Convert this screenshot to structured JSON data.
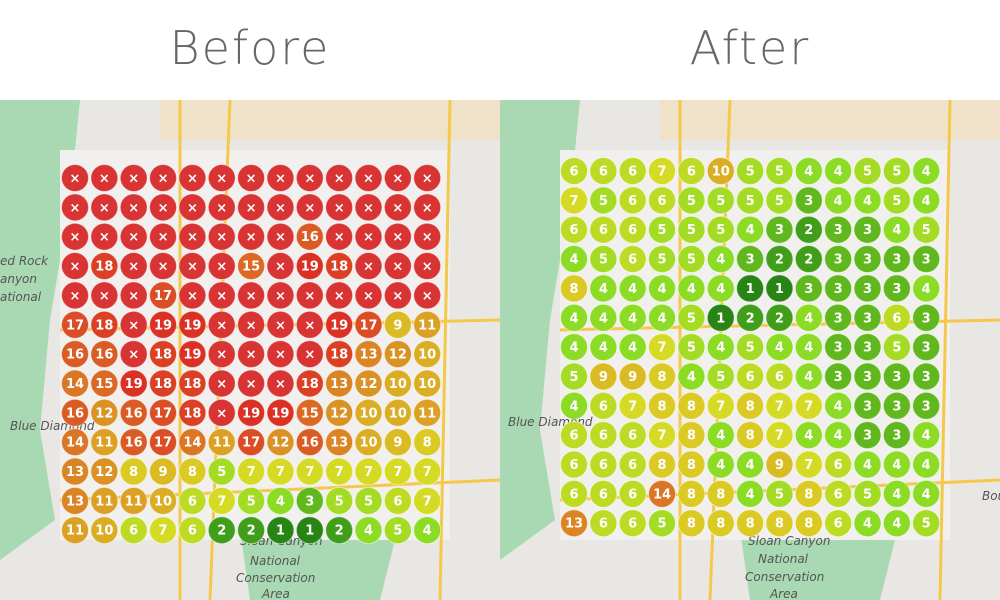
{
  "panels": [
    {
      "title": "Before",
      "map_labels": [
        "ed Rock",
        "anyon",
        "ational",
        "Blue Diamond",
        "Sloan Canyon",
        "National",
        "Conservation",
        "Area"
      ],
      "grid": [
        [
          "×",
          "×",
          "×",
          "×",
          "×",
          "×",
          "×",
          "×",
          "×",
          "×",
          "×",
          "×",
          "×"
        ],
        [
          "×",
          "×",
          "×",
          "×",
          "×",
          "×",
          "×",
          "×",
          "×",
          "×",
          "×",
          "×",
          "×"
        ],
        [
          "×",
          "×",
          "×",
          "×",
          "×",
          "×",
          "×",
          "×",
          16,
          "×",
          "×",
          "×",
          "×"
        ],
        [
          "×",
          18,
          "×",
          "×",
          "×",
          "×",
          15,
          "×",
          19,
          18,
          "×",
          "×",
          "×"
        ],
        [
          "×",
          "×",
          "×",
          17,
          "×",
          "×",
          "×",
          "×",
          "×",
          "×",
          "×",
          "×",
          "×"
        ],
        [
          17,
          18,
          "×",
          19,
          19,
          "×",
          "×",
          "×",
          "×",
          19,
          17,
          9,
          11
        ],
        [
          16,
          16,
          "×",
          18,
          19,
          "×",
          "×",
          "×",
          "×",
          18,
          13,
          12,
          10
        ],
        [
          14,
          15,
          19,
          18,
          18,
          "×",
          "×",
          "×",
          18,
          13,
          12,
          10,
          10
        ],
        [
          16,
          12,
          16,
          17,
          18,
          "×",
          19,
          19,
          15,
          12,
          10,
          10,
          11
        ],
        [
          14,
          11,
          16,
          17,
          14,
          11,
          17,
          12,
          16,
          13,
          10,
          9,
          8
        ],
        [
          13,
          12,
          8,
          9,
          8,
          5,
          7,
          7,
          7,
          7,
          7,
          7,
          7
        ],
        [
          13,
          11,
          11,
          10,
          6,
          7,
          5,
          4,
          3,
          5,
          5,
          6,
          7
        ],
        [
          11,
          10,
          6,
          7,
          6,
          2,
          2,
          1,
          1,
          2,
          4,
          5,
          4
        ]
      ]
    },
    {
      "title": "After",
      "map_labels": [
        "Blue Diamond",
        "Sloan Canyon",
        "National",
        "Conservation",
        "Area",
        "Bou"
      ],
      "grid": [
        [
          6,
          6,
          6,
          7,
          6,
          10,
          5,
          5,
          4,
          4,
          5,
          5,
          4
        ],
        [
          7,
          5,
          6,
          6,
          5,
          5,
          5,
          5,
          3,
          4,
          4,
          5,
          4
        ],
        [
          6,
          6,
          6,
          5,
          5,
          5,
          4,
          3,
          2,
          3,
          3,
          4,
          5
        ],
        [
          4,
          5,
          6,
          5,
          5,
          4,
          3,
          2,
          2,
          3,
          3,
          3,
          3
        ],
        [
          8,
          4,
          4,
          4,
          4,
          4,
          1,
          1,
          3,
          3,
          3,
          3,
          4
        ],
        [
          4,
          4,
          4,
          4,
          5,
          1,
          2,
          2,
          4,
          3,
          3,
          6,
          3
        ],
        [
          4,
          4,
          4,
          7,
          5,
          4,
          5,
          4,
          4,
          3,
          3,
          5,
          3
        ],
        [
          5,
          9,
          9,
          8,
          4,
          5,
          6,
          6,
          4,
          3,
          3,
          3,
          3
        ],
        [
          4,
          6,
          7,
          8,
          8,
          7,
          8,
          7,
          7,
          4,
          3,
          3,
          3
        ],
        [
          6,
          6,
          6,
          7,
          8,
          4,
          8,
          7,
          4,
          4,
          3,
          3,
          4
        ],
        [
          6,
          6,
          6,
          8,
          8,
          4,
          4,
          9,
          7,
          6,
          4,
          4,
          4
        ],
        [
          6,
          6,
          6,
          14,
          8,
          8,
          4,
          5,
          8,
          6,
          5,
          4,
          4
        ],
        [
          13,
          6,
          6,
          5,
          8,
          8,
          8,
          8,
          8,
          6,
          4,
          4,
          5
        ]
      ]
    }
  ]
}
